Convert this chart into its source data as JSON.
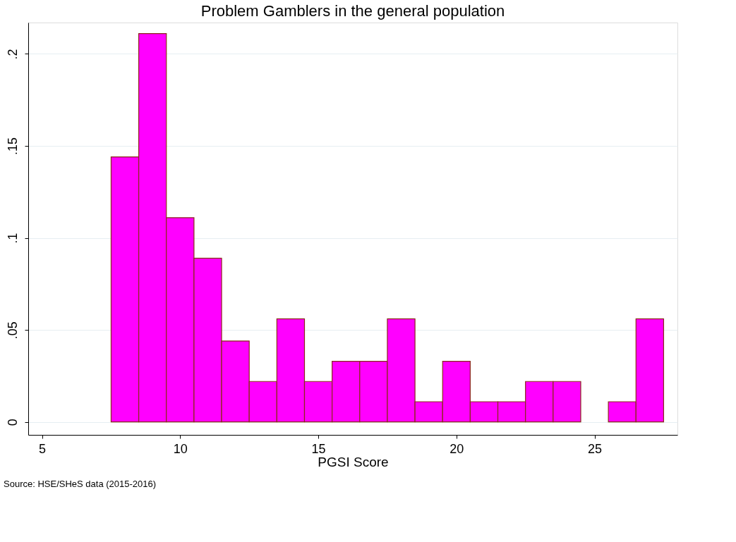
{
  "chart_data": {
    "type": "histogram",
    "title": "Problem Gamblers in the general population",
    "xlabel": "PGSI Score",
    "bins": [
      7.5,
      8.5,
      9.5,
      10.5,
      11.5,
      12.5,
      13.5,
      14.5,
      15.5,
      16.5,
      17.5,
      18.5,
      19.5,
      20.5,
      21.5,
      22.5,
      23.5,
      24.5,
      25.5,
      26.5,
      27.5
    ],
    "values": [
      0.144,
      0.211,
      0.111,
      0.089,
      0.044,
      0.022,
      0.056,
      0.022,
      0.033,
      0.033,
      0.056,
      0.011,
      0.033,
      0.011,
      0.011,
      0.022,
      0.022,
      0,
      0.011,
      0.056
    ],
    "color": "#ff00ff",
    "xlim": [
      4.5,
      28
    ],
    "xticks": [
      5,
      10,
      15,
      20,
      25
    ],
    "ylim": [
      -0.007,
      0.217
    ],
    "yticks": [
      {
        "value": 0,
        "label": "0"
      },
      {
        "value": 0.05,
        "label": ".05"
      },
      {
        "value": 0.1,
        "label": ".1"
      },
      {
        "value": 0.15,
        "label": ".15"
      },
      {
        "value": 0.2,
        "label": ".2"
      }
    ],
    "grid": "y",
    "annotations": [
      "Source:  HSE/SHeS data (2015-2016)"
    ]
  }
}
